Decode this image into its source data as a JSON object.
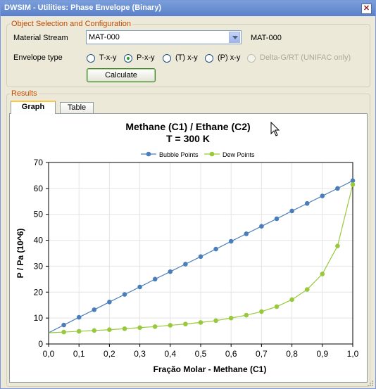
{
  "window": {
    "title": "DWSIM - Utilities: Phase Envelope (Binary)"
  },
  "config": {
    "group_label": "Object Selection and Configuration",
    "material_stream_label": "Material Stream",
    "material_stream_value": "MAT-000",
    "material_stream_display": "MAT-000",
    "envelope_type_label": "Envelope type",
    "options": [
      {
        "label": "T-x-y",
        "checked": false,
        "disabled": false
      },
      {
        "label": "P-x-y",
        "checked": true,
        "disabled": false
      },
      {
        "label": "(T) x-y",
        "checked": false,
        "disabled": false
      },
      {
        "label": "(P) x-y",
        "checked": false,
        "disabled": false
      },
      {
        "label": "Delta-G/RT (UNIFAC only)",
        "checked": false,
        "disabled": true
      }
    ],
    "calculate_label": "Calculate"
  },
  "results": {
    "group_label": "Results",
    "tabs": [
      {
        "label": "Graph",
        "active": true
      },
      {
        "label": "Table",
        "active": false
      }
    ]
  },
  "chart_data": {
    "type": "line",
    "title": "Methane (C1) / Ethane (C2)",
    "subtitle": "T = 300 K",
    "xlabel": "Fração Molar - Methane (C1)",
    "ylabel": "P / Pa (10^6)",
    "xlim": [
      0,
      1
    ],
    "ylim": [
      0,
      70
    ],
    "xticks": [
      "0,0",
      "0,1",
      "0,2",
      "0,3",
      "0,4",
      "0,5",
      "0,6",
      "0,7",
      "0,8",
      "0,9",
      "1,0"
    ],
    "yticks": [
      "0",
      "10",
      "20",
      "30",
      "40",
      "50",
      "60",
      "70"
    ],
    "legend_position": "top",
    "colors": {
      "bubble": "#4a7ebb",
      "dew": "#98c93c"
    },
    "series": [
      {
        "name": "Bubble Points",
        "x": [
          0,
          0.05,
          0.1,
          0.15,
          0.2,
          0.25,
          0.3,
          0.35,
          0.4,
          0.45,
          0.5,
          0.55,
          0.6,
          0.65,
          0.7,
          0.75,
          0.8,
          0.85,
          0.9,
          0.95,
          1.0
        ],
        "y": [
          4.3,
          7.3,
          10.3,
          13.2,
          16.2,
          19.1,
          22.0,
          25.0,
          27.9,
          30.8,
          33.7,
          36.6,
          39.6,
          42.5,
          45.4,
          48.3,
          51.3,
          54.2,
          57.1,
          60.0,
          63.0
        ],
        "marker_x": [
          0.05,
          0.1,
          0.15,
          0.2,
          0.25,
          0.3,
          0.35,
          0.4,
          0.45,
          0.5,
          0.55,
          0.6,
          0.65,
          0.7,
          0.75,
          0.8,
          0.85,
          0.9,
          0.95,
          1.0
        ]
      },
      {
        "name": "Dew Points",
        "x": [
          0,
          0.05,
          0.1,
          0.15,
          0.2,
          0.25,
          0.3,
          0.35,
          0.4,
          0.45,
          0.5,
          0.55,
          0.6,
          0.65,
          0.7,
          0.75,
          0.8,
          0.85,
          0.9,
          0.95,
          1.0
        ],
        "y": [
          4.3,
          4.6,
          4.9,
          5.2,
          5.5,
          5.9,
          6.3,
          6.7,
          7.2,
          7.7,
          8.3,
          9.0,
          10.0,
          11.1,
          12.5,
          14.4,
          17.1,
          21.0,
          27.0,
          37.8,
          61.5
        ],
        "marker_x": [
          0.05,
          0.1,
          0.15,
          0.2,
          0.25,
          0.3,
          0.35,
          0.4,
          0.45,
          0.5,
          0.55,
          0.6,
          0.65,
          0.7,
          0.75,
          0.8,
          0.85,
          0.9,
          0.95,
          1.0
        ]
      }
    ]
  }
}
